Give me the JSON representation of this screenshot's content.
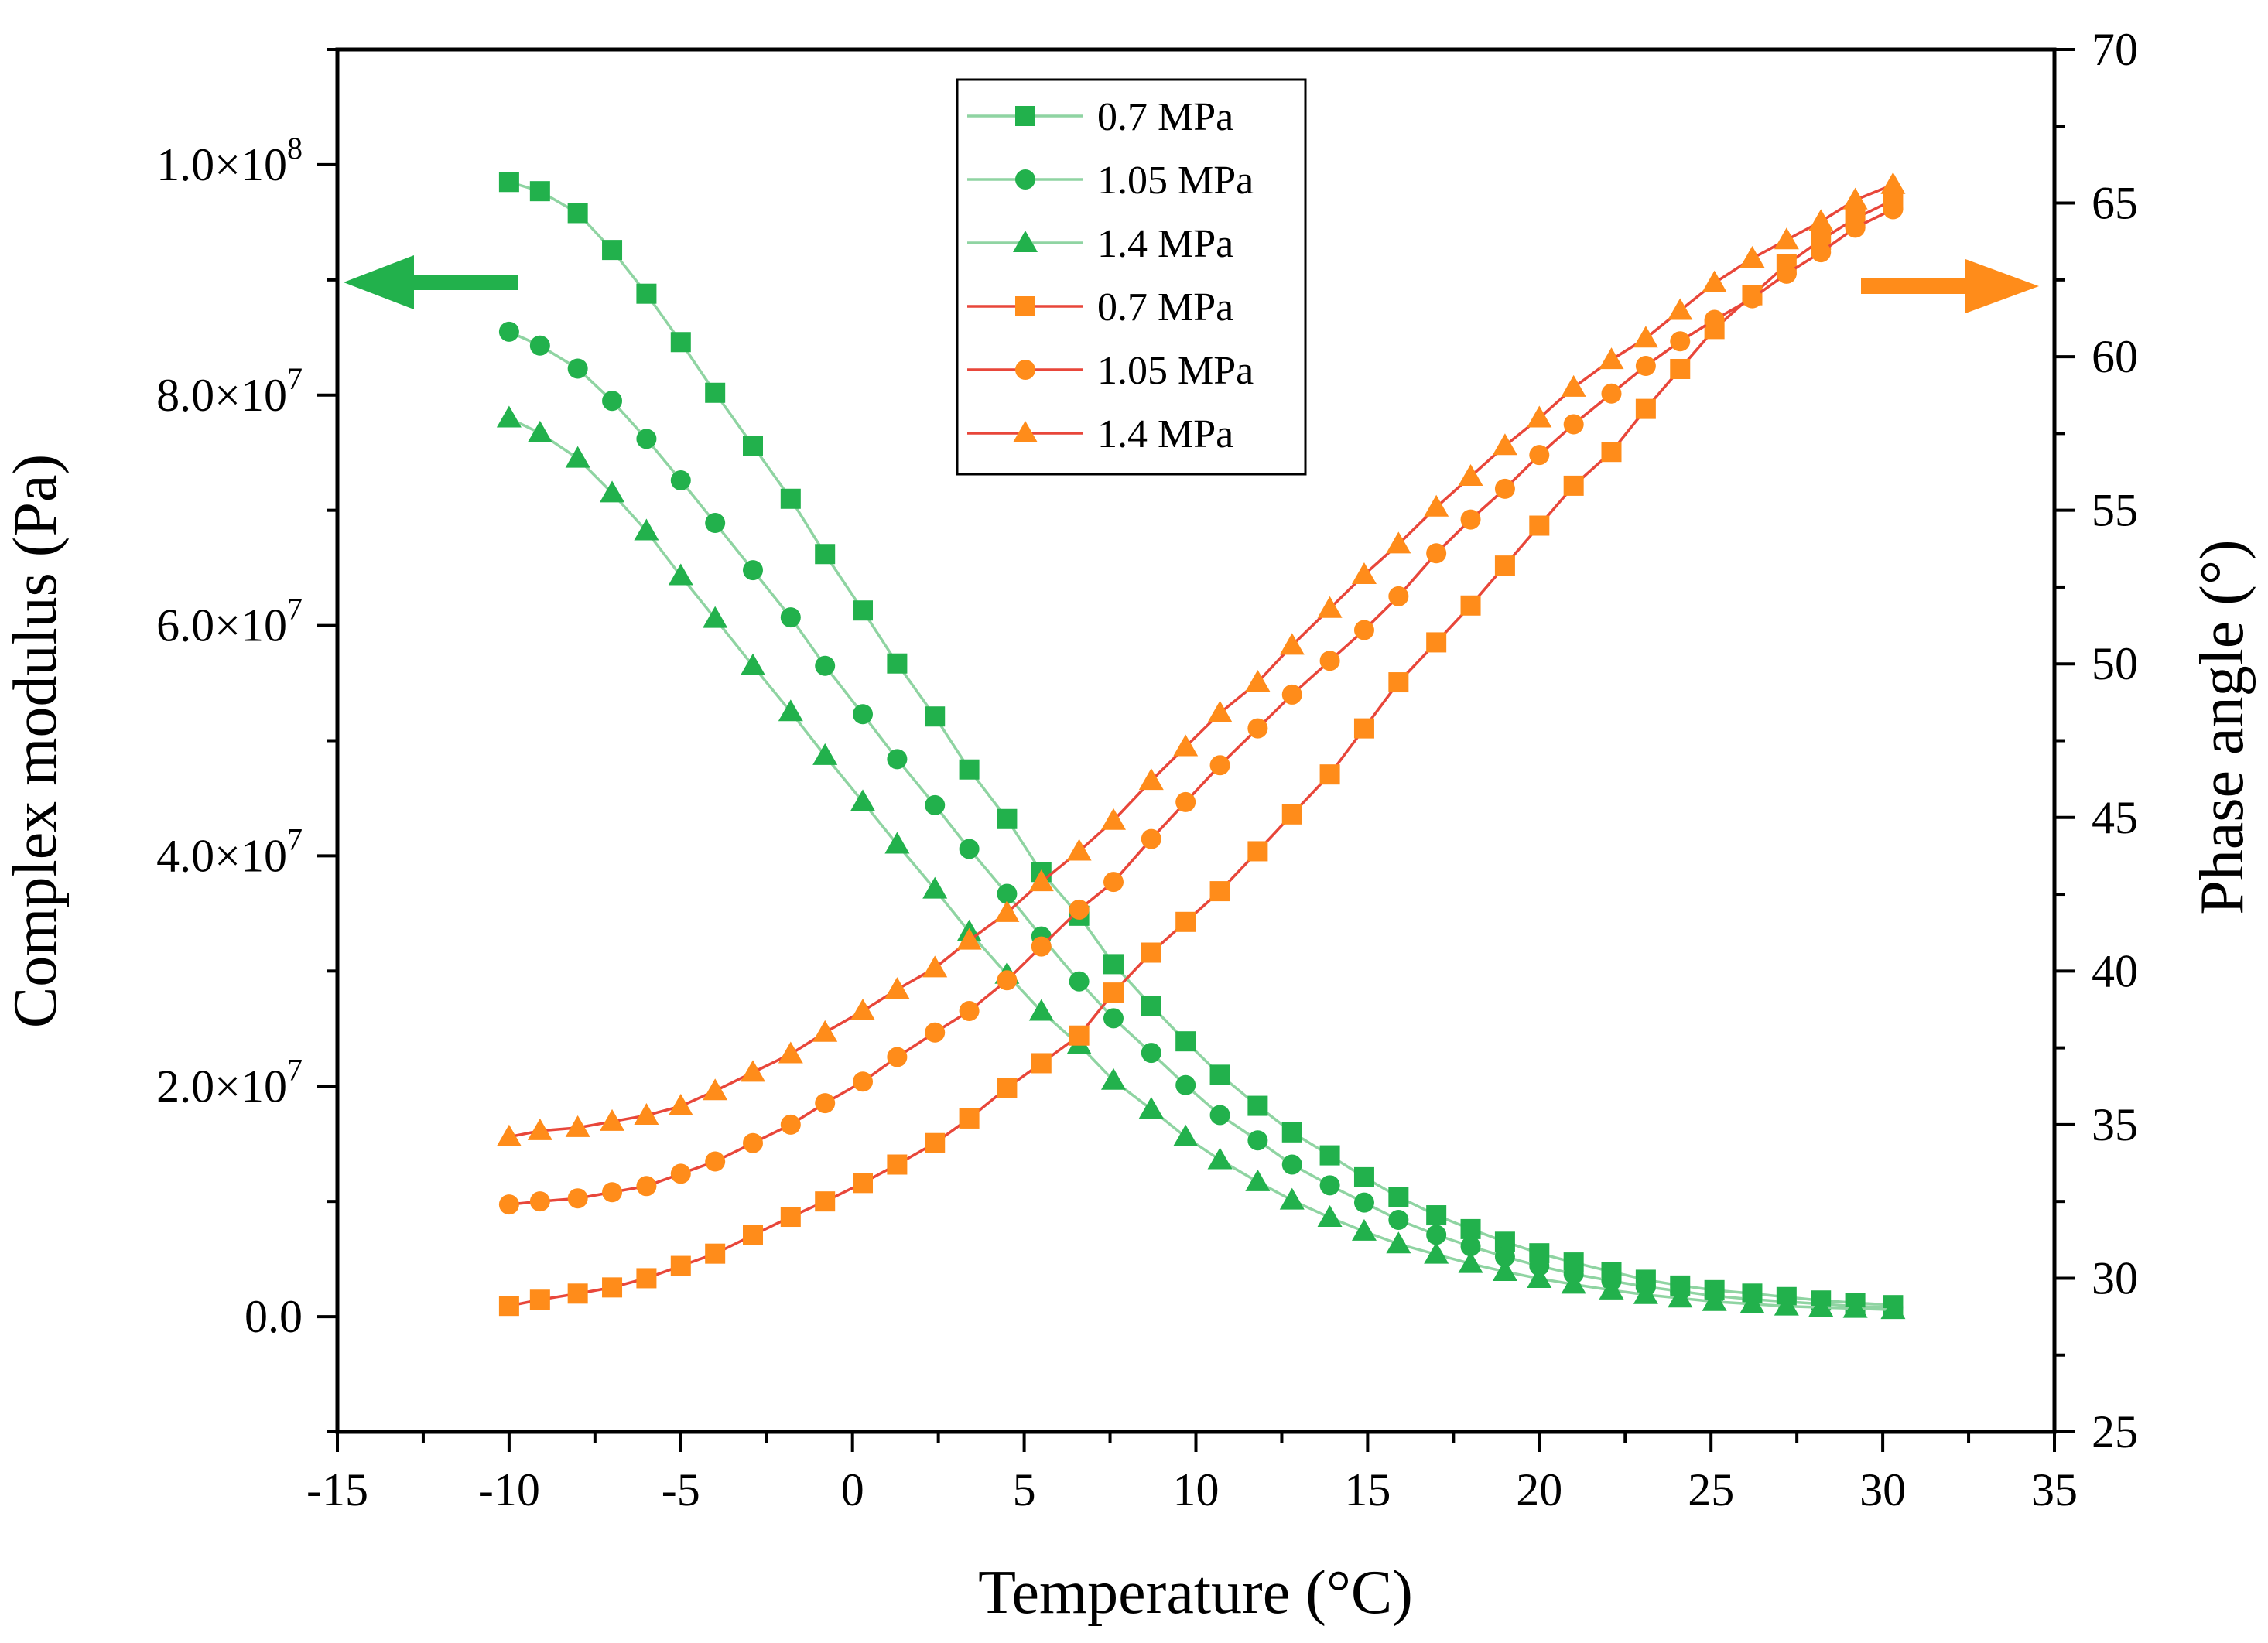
{
  "chart_data": {
    "type": "line",
    "xlabel": "Temperature (°C)",
    "ylabel_left": "Complex modulus (Pa)",
    "ylabel_right": "Phase angle (°)",
    "xlim": [
      -15,
      35
    ],
    "ylim_left": [
      -10000000,
      110000000
    ],
    "ylim_right": [
      25,
      70
    ],
    "x_ticks": [
      -15,
      -10,
      -5,
      0,
      5,
      10,
      15,
      20,
      25,
      30,
      35
    ],
    "x_tick_labels": [
      "-15",
      "-10",
      "-5",
      "0",
      "5",
      "10",
      "15",
      "20",
      "25",
      "30",
      "35"
    ],
    "y_left_ticks": [
      0,
      20000000,
      40000000,
      60000000,
      80000000,
      100000000
    ],
    "y_left_tick_labels": [
      {
        "mantissa": "0.0",
        "exp": ""
      },
      {
        "mantissa": "2.0×10",
        "exp": "7"
      },
      {
        "mantissa": "4.0×10",
        "exp": "7"
      },
      {
        "mantissa": "6.0×10",
        "exp": "7"
      },
      {
        "mantissa": "8.0×10",
        "exp": "7"
      },
      {
        "mantissa": "1.0×10",
        "exp": "8"
      }
    ],
    "y_right_ticks": [
      25,
      30,
      35,
      40,
      45,
      50,
      55,
      60,
      65,
      70
    ],
    "y_right_tick_labels": [
      "25",
      "30",
      "35",
      "40",
      "45",
      "50",
      "55",
      "60",
      "65",
      "70"
    ],
    "grid": false,
    "legend_position": "top-center",
    "annotations": [
      {
        "type": "arrow",
        "direction": "left",
        "color": "#22b14c",
        "meaning": "complex modulus series use left axis"
      },
      {
        "type": "arrow",
        "direction": "right",
        "color": "#ff8c1a",
        "meaning": "phase angle series use right axis"
      }
    ],
    "series": [
      {
        "name": "0.7 MPa",
        "axis": "left",
        "marker": "square",
        "marker_color": "#22b14c",
        "line_color": "#8fd4a2",
        "x": [
          -10,
          -9.1,
          -8,
          -7,
          -6,
          -5,
          -4,
          -2.9,
          -1.8,
          -0.8,
          0.3,
          1.3,
          2.4,
          3.4,
          4.5,
          5.5,
          6.6,
          7.6,
          8.7,
          9.7,
          10.7,
          11.8,
          12.8,
          13.9,
          14.9,
          15.9,
          17,
          18,
          19,
          20,
          21,
          22.1,
          23.1,
          24.1,
          25.1,
          26.2,
          27.2,
          28.2,
          29.2,
          30.3
        ],
        "y": [
          98500000,
          97700000,
          95800000,
          92600000,
          88800000,
          84600000,
          80200000,
          75600000,
          71000000,
          66200000,
          61300000,
          56700000,
          52100000,
          47500000,
          43200000,
          38600000,
          34800000,
          30600000,
          27000000,
          23900000,
          21000000,
          18300000,
          16000000,
          14000000,
          12100000,
          10400000,
          8800000,
          7600000,
          6500000,
          5500000,
          4700000,
          3900000,
          3200000,
          2700000,
          2300000,
          2000000,
          1700000,
          1400000,
          1200000,
          1000000
        ]
      },
      {
        "name": "1.05 MPa",
        "axis": "left",
        "marker": "circle",
        "marker_color": "#22b14c",
        "line_color": "#8fd4a2",
        "x": [
          -10,
          -9.1,
          -8,
          -7,
          -6,
          -5,
          -4,
          -2.9,
          -1.8,
          -0.8,
          0.3,
          1.3,
          2.4,
          3.4,
          4.5,
          5.5,
          6.6,
          7.6,
          8.7,
          9.7,
          10.7,
          11.8,
          12.8,
          13.9,
          14.9,
          15.9,
          17,
          18,
          19,
          20,
          21,
          22.1,
          23.1,
          24.1,
          25.1,
          26.2,
          27.2,
          28.2,
          29.2,
          30.3
        ],
        "y": [
          85500000,
          84300000,
          82300000,
          79500000,
          76200000,
          72600000,
          68900000,
          64800000,
          60700000,
          56500000,
          52300000,
          48400000,
          44400000,
          40600000,
          36700000,
          33000000,
          29100000,
          25900000,
          22900000,
          20100000,
          17500000,
          15300000,
          13200000,
          11400000,
          9900000,
          8400000,
          7100000,
          6100000,
          5200000,
          4400000,
          3700000,
          3100000,
          2600000,
          2200000,
          1800000,
          1500000,
          1300000,
          1100000,
          900000,
          800000
        ]
      },
      {
        "name": "1.4 MPa",
        "axis": "left",
        "marker": "triangle",
        "marker_color": "#22b14c",
        "line_color": "#8fd4a2",
        "x": [
          -10,
          -9.1,
          -8,
          -7,
          -6,
          -5,
          -4,
          -2.9,
          -1.8,
          -0.8,
          0.3,
          1.3,
          2.4,
          3.4,
          4.5,
          5.5,
          6.6,
          7.6,
          8.7,
          9.7,
          10.7,
          11.8,
          12.8,
          13.9,
          14.9,
          15.9,
          17,
          18,
          19,
          20,
          21,
          22.1,
          23.1,
          24.1,
          25.1,
          26.2,
          27.2,
          28.2,
          29.2,
          30.3
        ],
        "y": [
          78000000,
          76700000,
          74500000,
          71500000,
          68200000,
          64300000,
          60600000,
          56500000,
          52500000,
          48700000,
          44700000,
          41000000,
          37100000,
          33400000,
          29700000,
          26500000,
          23600000,
          20500000,
          18000000,
          15600000,
          13600000,
          11700000,
          10100000,
          8600000,
          7400000,
          6300000,
          5400000,
          4600000,
          3900000,
          3300000,
          2800000,
          2300000,
          1900000,
          1600000,
          1300000,
          1100000,
          900000,
          800000,
          700000,
          600000
        ]
      },
      {
        "name": "0.7 MPa",
        "axis": "right",
        "marker": "square",
        "marker_color": "#ff8c1a",
        "line_color": "#e8463a",
        "x": [
          -10,
          -9.1,
          -8,
          -7,
          -6,
          -5,
          -4,
          -2.9,
          -1.8,
          -0.8,
          0.3,
          1.3,
          2.4,
          3.4,
          4.5,
          5.5,
          6.6,
          7.6,
          8.7,
          9.7,
          10.7,
          11.8,
          12.8,
          13.9,
          14.9,
          15.9,
          17,
          18,
          19,
          20,
          21,
          22.1,
          23.1,
          24.1,
          25.1,
          26.2,
          27.2,
          28.2,
          29.2,
          30.3
        ],
        "y": [
          29.1,
          29.3,
          29.5,
          29.7,
          30.0,
          30.4,
          30.8,
          31.4,
          32.0,
          32.5,
          33.1,
          33.7,
          34.4,
          35.2,
          36.2,
          37.0,
          37.9,
          39.3,
          40.6,
          41.6,
          42.6,
          43.9,
          45.1,
          46.4,
          47.9,
          49.4,
          50.7,
          51.9,
          53.2,
          54.5,
          55.8,
          56.9,
          58.3,
          59.6,
          60.9,
          62.0,
          63.0,
          63.8,
          64.5,
          65.1
        ]
      },
      {
        "name": "1.05 MPa",
        "axis": "right",
        "marker": "circle",
        "marker_color": "#ff8c1a",
        "line_color": "#e8463a",
        "x": [
          -10,
          -9.1,
          -8,
          -7,
          -6,
          -5,
          -4,
          -2.9,
          -1.8,
          -0.8,
          0.3,
          1.3,
          2.4,
          3.4,
          4.5,
          5.5,
          6.6,
          7.6,
          8.7,
          9.7,
          10.7,
          11.8,
          12.8,
          13.9,
          14.9,
          15.9,
          17,
          18,
          19,
          20,
          21,
          22.1,
          23.1,
          24.1,
          25.1,
          26.2,
          27.2,
          28.2,
          29.2,
          30.3
        ],
        "y": [
          32.4,
          32.5,
          32.6,
          32.8,
          33.0,
          33.4,
          33.8,
          34.4,
          35.0,
          35.7,
          36.4,
          37.2,
          38.0,
          38.7,
          39.7,
          40.8,
          42.0,
          42.9,
          44.3,
          45.5,
          46.7,
          47.9,
          49.0,
          50.1,
          51.1,
          52.2,
          53.6,
          54.7,
          55.7,
          56.8,
          57.8,
          58.8,
          59.7,
          60.5,
          61.2,
          61.9,
          62.7,
          63.4,
          64.2,
          64.8
        ]
      },
      {
        "name": "1.4 MPa",
        "axis": "right",
        "marker": "triangle",
        "marker_color": "#ff8c1a",
        "line_color": "#e8463a",
        "x": [
          -10,
          -9.1,
          -8,
          -7,
          -6,
          -5,
          -4,
          -2.9,
          -1.8,
          -0.8,
          0.3,
          1.3,
          2.4,
          3.4,
          4.5,
          5.5,
          6.6,
          7.6,
          8.7,
          9.7,
          10.7,
          11.8,
          12.8,
          13.9,
          14.9,
          15.9,
          17,
          18,
          19,
          20,
          21,
          22.1,
          23.1,
          24.1,
          25.1,
          26.2,
          27.2,
          28.2,
          29.2,
          30.3
        ],
        "y": [
          34.6,
          34.8,
          34.9,
          35.1,
          35.3,
          35.6,
          36.1,
          36.7,
          37.3,
          38.0,
          38.7,
          39.4,
          40.1,
          41.0,
          41.9,
          42.9,
          43.9,
          44.9,
          46.2,
          47.3,
          48.4,
          49.4,
          50.6,
          51.8,
          52.9,
          53.9,
          55.1,
          56.1,
          57.1,
          58.0,
          59.0,
          59.9,
          60.6,
          61.5,
          62.4,
          63.2,
          63.8,
          64.4,
          65.1,
          65.6
        ]
      }
    ]
  }
}
